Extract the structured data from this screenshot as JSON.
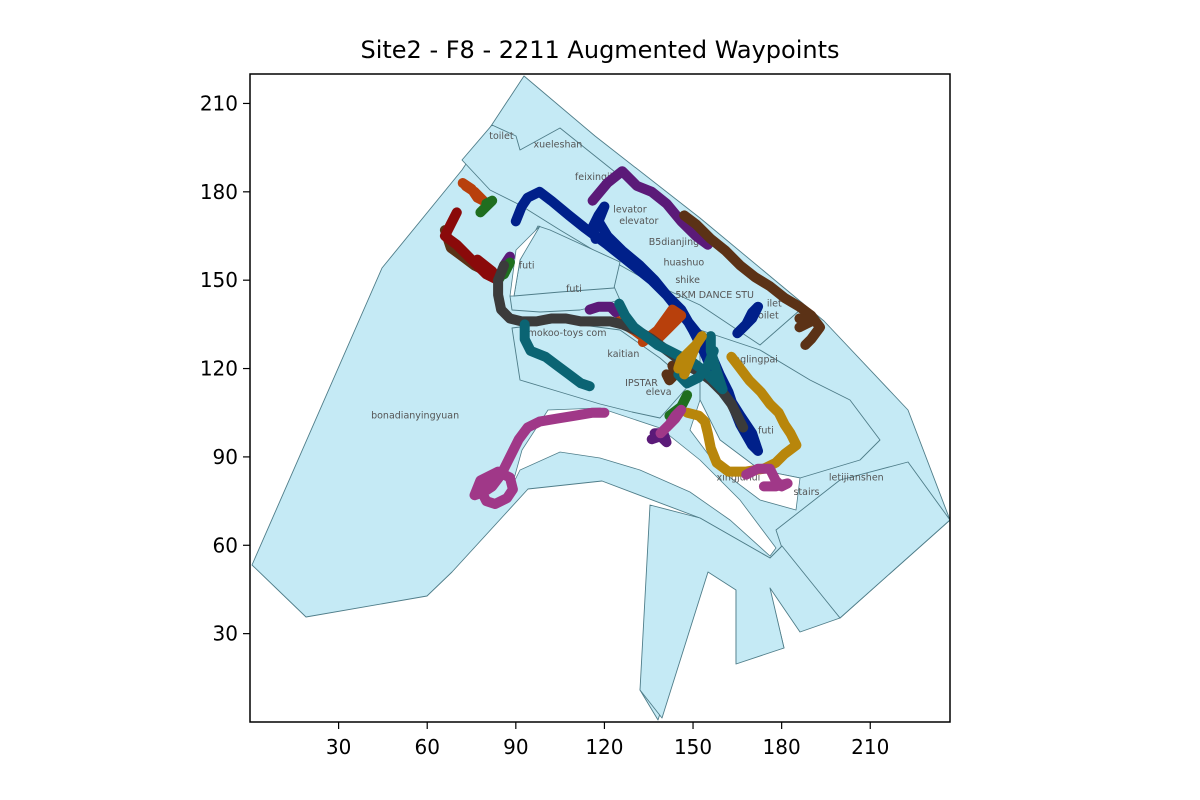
{
  "title": "Site2 - F8 - 2211 Augmented Waypoints",
  "chart_data": {
    "type": "map",
    "title": "Site2 - F8 - 2211 Augmented Waypoints",
    "xlim": [
      0,
      237
    ],
    "ylim": [
      0,
      220
    ],
    "x_ticks": [
      30,
      60,
      90,
      120,
      150,
      180,
      210
    ],
    "y_ticks": [
      30,
      60,
      90,
      120,
      150,
      180,
      210
    ],
    "room_labels": [
      {
        "text": "toilet",
        "x": 81,
        "y": 198
      },
      {
        "text": "xueleshan",
        "x": 96,
        "y": 195
      },
      {
        "text": "feixingjia",
        "x": 110,
        "y": 184
      },
      {
        "text": "levator",
        "x": 123,
        "y": 173
      },
      {
        "text": "elevator",
        "x": 125,
        "y": 169
      },
      {
        "text": "B5dianjing",
        "x": 135,
        "y": 162
      },
      {
        "text": "huashuo",
        "x": 140,
        "y": 155
      },
      {
        "text": "shike",
        "x": 144,
        "y": 149
      },
      {
        "text": "5KM DANCE STU",
        "x": 144,
        "y": 144
      },
      {
        "text": "ilet",
        "x": 175,
        "y": 141
      },
      {
        "text": "oilet",
        "x": 172,
        "y": 137
      },
      {
        "text": "futi",
        "x": 91,
        "y": 154
      },
      {
        "text": "futi",
        "x": 107,
        "y": 146
      },
      {
        "text": "mokoo-toys com",
        "x": 94,
        "y": 131
      },
      {
        "text": "kaitian",
        "x": 121,
        "y": 124
      },
      {
        "text": "inglingpai",
        "x": 163,
        "y": 122
      },
      {
        "text": "IPSTAR",
        "x": 127,
        "y": 114
      },
      {
        "text": "eleva",
        "x": 134,
        "y": 111
      },
      {
        "text": "bonadianyingyuan",
        "x": 41,
        "y": 103
      },
      {
        "text": "futi",
        "x": 172,
        "y": 98
      },
      {
        "text": "xingjuhui",
        "x": 158,
        "y": 82
      },
      {
        "text": "stairs",
        "x": 184,
        "y": 77
      },
      {
        "text": "letijianshen",
        "x": 196,
        "y": 82
      }
    ],
    "series": [
      {
        "color": "#00208a",
        "points": [
          [
            90,
            170
          ],
          [
            92,
            175
          ],
          [
            94,
            178
          ],
          [
            98,
            180
          ],
          [
            102,
            177
          ],
          [
            108,
            172
          ],
          [
            113,
            168
          ],
          [
            117,
            165
          ],
          [
            121,
            162
          ],
          [
            126,
            158
          ],
          [
            131,
            154
          ],
          [
            136,
            150
          ],
          [
            141,
            145
          ],
          [
            145,
            140
          ],
          [
            149,
            135
          ],
          [
            153,
            130
          ],
          [
            156,
            125
          ],
          [
            159,
            118
          ],
          [
            162,
            112
          ],
          [
            164,
            106
          ],
          [
            166,
            101
          ],
          [
            170,
            94
          ],
          [
            172,
            92
          ],
          [
            170,
            98
          ],
          [
            166,
            104
          ],
          [
            161,
            112
          ],
          [
            157,
            118
          ],
          [
            154,
            125
          ],
          [
            150,
            133
          ],
          [
            146,
            140
          ],
          [
            141,
            145
          ],
          [
            137,
            150
          ],
          [
            132,
            155
          ],
          [
            126,
            160
          ],
          [
            121,
            165
          ],
          [
            118,
            170
          ],
          [
            120,
            175
          ],
          [
            118,
            172
          ],
          [
            116,
            168
          ],
          [
            117,
            164
          ]
        ]
      },
      {
        "color": "#00208a",
        "points": [
          [
            165,
            132
          ],
          [
            168,
            135
          ],
          [
            170,
            139
          ],
          [
            172,
            141
          ],
          [
            170,
            137
          ],
          [
            167,
            134
          ]
        ]
      },
      {
        "color": "#5b1a78",
        "points": [
          [
            116,
            177
          ],
          [
            121,
            183
          ],
          [
            126,
            187
          ],
          [
            131,
            182
          ],
          [
            136,
            180
          ],
          [
            141,
            176
          ],
          [
            146,
            170
          ],
          [
            151,
            165
          ],
          [
            155,
            162
          ]
        ]
      },
      {
        "color": "#5b1a78",
        "points": [
          [
            84,
            150
          ],
          [
            86,
            155
          ],
          [
            88,
            158
          ]
        ]
      },
      {
        "color": "#5b1a78",
        "points": [
          [
            115,
            140
          ],
          [
            118,
            141
          ],
          [
            122,
            141
          ],
          [
            124,
            139
          ]
        ]
      },
      {
        "color": "#5b1a78",
        "points": [
          [
            136,
            96
          ],
          [
            139,
            97
          ],
          [
            141,
            95
          ],
          [
            140,
            98
          ],
          [
            137,
            98
          ]
        ]
      },
      {
        "color": "#5b3216",
        "points": [
          [
            66,
            167
          ],
          [
            68,
            161
          ],
          [
            72,
            158
          ],
          [
            76,
            155
          ],
          [
            80,
            153
          ]
        ]
      },
      {
        "color": "#5b3216",
        "points": [
          [
            147,
            172
          ],
          [
            151,
            169
          ],
          [
            156,
            164
          ],
          [
            161,
            160
          ],
          [
            166,
            155
          ],
          [
            171,
            151
          ],
          [
            176,
            148
          ],
          [
            181,
            144
          ],
          [
            186,
            141
          ],
          [
            190,
            138
          ],
          [
            193,
            134
          ],
          [
            190,
            130
          ],
          [
            188,
            128
          ]
        ]
      },
      {
        "color": "#5b3216",
        "points": [
          [
            186,
            134
          ],
          [
            190,
            136
          ],
          [
            186,
            137
          ]
        ]
      },
      {
        "color": "#5b3216",
        "points": [
          [
            141,
            118
          ],
          [
            142,
            116
          ],
          [
            144,
            118
          ],
          [
            143,
            121
          ]
        ]
      },
      {
        "color": "#8a0a0a",
        "points": [
          [
            70,
            173
          ],
          [
            68,
            169
          ],
          [
            66,
            165
          ],
          [
            70,
            162
          ],
          [
            75,
            157
          ],
          [
            80,
            152
          ],
          [
            84,
            150
          ],
          [
            82,
            153
          ],
          [
            77,
            157
          ]
        ]
      },
      {
        "color": "#b8400c",
        "points": [
          [
            72,
            183
          ],
          [
            75,
            181
          ],
          [
            77,
            178
          ],
          [
            79,
            177
          ],
          [
            76,
            180
          ],
          [
            73,
            182
          ]
        ]
      },
      {
        "color": "#b8400c",
        "points": [
          [
            125,
            136
          ],
          [
            130,
            133
          ],
          [
            134,
            130
          ],
          [
            138,
            130
          ],
          [
            142,
            134
          ],
          [
            146,
            138
          ],
          [
            143,
            140
          ],
          [
            138,
            133
          ],
          [
            133,
            129
          ]
        ]
      },
      {
        "color": "#1f6e1f",
        "points": [
          [
            78,
            173
          ],
          [
            80,
            175
          ],
          [
            82,
            177
          ],
          [
            80,
            176
          ]
        ]
      },
      {
        "color": "#1f6e1f",
        "points": [
          [
            84,
            150
          ],
          [
            86,
            153
          ],
          [
            88,
            156
          ],
          [
            86,
            152
          ]
        ]
      },
      {
        "color": "#1f6e1f",
        "points": [
          [
            142,
            104
          ],
          [
            146,
            107
          ],
          [
            148,
            111
          ]
        ]
      },
      {
        "color": "#3b3b3b",
        "points": [
          [
            86,
            155
          ],
          [
            84,
            150
          ],
          [
            84,
            145
          ],
          [
            85,
            140
          ],
          [
            88,
            137
          ],
          [
            92,
            136
          ],
          [
            97,
            136
          ],
          [
            102,
            137
          ],
          [
            107,
            137
          ],
          [
            112,
            136
          ],
          [
            117,
            136
          ],
          [
            122,
            136
          ],
          [
            126,
            135
          ],
          [
            131,
            133
          ],
          [
            136,
            130
          ],
          [
            140,
            127
          ],
          [
            144,
            124
          ],
          [
            148,
            121
          ],
          [
            152,
            119
          ],
          [
            156,
            116
          ],
          [
            160,
            112
          ],
          [
            163,
            108
          ],
          [
            165,
            104
          ],
          [
            167,
            100
          ]
        ]
      },
      {
        "color": "#0b6473",
        "points": [
          [
            93,
            135
          ],
          [
            93,
            130
          ],
          [
            95,
            126
          ],
          [
            100,
            124
          ],
          [
            104,
            121
          ],
          [
            108,
            118
          ],
          [
            112,
            115
          ],
          [
            115,
            114
          ]
        ]
      },
      {
        "color": "#0b6473",
        "points": [
          [
            125,
            142
          ],
          [
            127,
            138
          ],
          [
            130,
            134
          ],
          [
            134,
            131
          ],
          [
            138,
            128
          ],
          [
            142,
            126
          ],
          [
            146,
            124
          ],
          [
            150,
            122
          ],
          [
            154,
            119
          ],
          [
            157,
            116
          ],
          [
            160,
            113
          ],
          [
            158,
            119
          ],
          [
            156,
            126
          ],
          [
            156,
            131
          ]
        ]
      },
      {
        "color": "#0b6473",
        "points": [
          [
            145,
            118
          ],
          [
            148,
            115
          ],
          [
            152,
            117
          ],
          [
            155,
            121
          ],
          [
            157,
            126
          ]
        ]
      },
      {
        "color": "#b8860b",
        "points": [
          [
            147,
            118
          ],
          [
            149,
            123
          ],
          [
            151,
            128
          ],
          [
            153,
            131
          ],
          [
            151,
            128
          ],
          [
            148,
            125
          ],
          [
            146,
            123
          ],
          [
            145,
            120
          ]
        ]
      },
      {
        "color": "#b8860b",
        "points": [
          [
            163,
            124
          ],
          [
            166,
            120
          ],
          [
            169,
            116
          ],
          [
            173,
            112
          ],
          [
            176,
            108
          ],
          [
            179,
            105
          ],
          [
            181,
            101
          ],
          [
            183,
            98
          ],
          [
            185,
            94
          ],
          [
            181,
            91
          ],
          [
            178,
            88
          ],
          [
            174,
            86
          ],
          [
            168,
            85
          ],
          [
            162,
            85
          ],
          [
            158,
            88
          ],
          [
            156,
            93
          ],
          [
            155,
            98
          ],
          [
            154,
            102
          ],
          [
            152,
            104
          ],
          [
            148,
            105
          ]
        ]
      },
      {
        "color": "#a03888",
        "points": [
          [
            120,
            105
          ],
          [
            116,
            105
          ],
          [
            110,
            104
          ],
          [
            104,
            103
          ],
          [
            98,
            102
          ],
          [
            94,
            100
          ],
          [
            91,
            96
          ],
          [
            89,
            92
          ],
          [
            87,
            88
          ],
          [
            85,
            84
          ],
          [
            82,
            80
          ],
          [
            79,
            78
          ],
          [
            76,
            77
          ],
          [
            78,
            82
          ],
          [
            84,
            85
          ],
          [
            88,
            83
          ],
          [
            89,
            79
          ],
          [
            87,
            76
          ],
          [
            83,
            74
          ],
          [
            80,
            75
          ],
          [
            78,
            79
          ],
          [
            80,
            83
          ],
          [
            85,
            84
          ]
        ]
      },
      {
        "color": "#a03888",
        "points": [
          [
            168,
            84
          ],
          [
            172,
            86
          ],
          [
            176,
            86
          ],
          [
            178,
            82
          ],
          [
            180,
            80
          ],
          [
            182,
            81
          ],
          [
            178,
            80
          ],
          [
            174,
            80
          ]
        ]
      },
      {
        "color": "#a03888",
        "points": [
          [
            139,
            98
          ],
          [
            142,
            101
          ],
          [
            144,
            104
          ],
          [
            146,
            106
          ],
          [
            144,
            103
          ],
          [
            141,
            100
          ]
        ]
      }
    ]
  }
}
